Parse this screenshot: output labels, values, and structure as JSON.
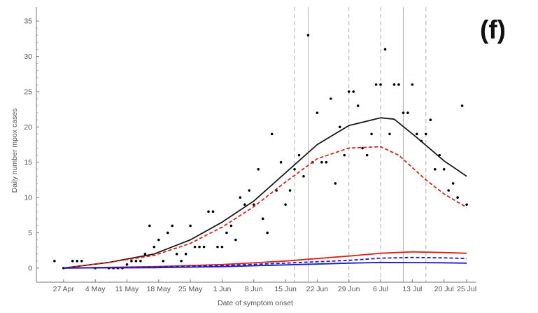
{
  "chart_data": {
    "type": "line",
    "panel_label": "(f)",
    "xlabel": "Date of symptom onset",
    "ylabel": "Daily number mpox cases",
    "x_ticks": [
      "27 Apr",
      "4 May",
      "11 May",
      "18 May",
      "25 May",
      "1 Jun",
      "8 Jun",
      "15 Jun",
      "22 Jun",
      "29 Jun",
      "6 Jul",
      "13 Jul",
      "20 Jul",
      "25 Jul"
    ],
    "x_tick_days": [
      0,
      7,
      14,
      21,
      28,
      35,
      42,
      49,
      56,
      63,
      70,
      77,
      84,
      89
    ],
    "y_ticks": [
      0,
      5,
      10,
      15,
      20,
      25,
      30,
      35
    ],
    "xlim": [
      -6,
      91
    ],
    "ylim": [
      -2,
      37
    ],
    "colors": {
      "black": "#1a1a1a",
      "red": "#e0201b",
      "blue": "#1c1ccc",
      "points": "#000000",
      "guides": "#b0b0b0"
    },
    "vlines_dashed": [
      51,
      63,
      70,
      80
    ],
    "vlines_solid": [
      54,
      75
    ],
    "series": [
      {
        "style": "solid",
        "color": "black",
        "x": [
          0,
          10,
          20,
          28,
          35,
          42,
          49,
          56,
          63,
          70,
          73,
          78,
          84,
          89
        ],
        "y": [
          0,
          0.8,
          2,
          4,
          6.5,
          9.5,
          13.5,
          17.5,
          20.2,
          21.3,
          21.1,
          18.5,
          15.2,
          13
        ]
      },
      {
        "style": "dashed",
        "color": "red",
        "x": [
          0,
          10,
          20,
          28,
          35,
          42,
          49,
          56,
          63,
          70,
          74,
          80,
          84,
          89
        ],
        "y": [
          0,
          0.8,
          1.8,
          3.5,
          5.8,
          8.7,
          12.2,
          15.5,
          17,
          17.2,
          16,
          12.5,
          10.5,
          8.6
        ]
      },
      {
        "style": "solid",
        "color": "red",
        "x": [
          0,
          20,
          35,
          49,
          63,
          70,
          77,
          84,
          89
        ],
        "y": [
          0,
          0.2,
          0.5,
          1,
          1.7,
          2.1,
          2.3,
          2.2,
          2.1
        ]
      },
      {
        "style": "dashed",
        "color": "blue",
        "x": [
          0,
          20,
          35,
          49,
          63,
          70,
          77,
          84,
          89
        ],
        "y": [
          0,
          0.15,
          0.35,
          0.7,
          1.1,
          1.4,
          1.5,
          1.45,
          1.35
        ]
      },
      {
        "style": "solid",
        "color": "blue",
        "x": [
          0,
          20,
          35,
          49,
          63,
          70,
          77,
          84,
          89
        ],
        "y": [
          0,
          0.05,
          0.2,
          0.45,
          0.7,
          0.8,
          0.78,
          0.75,
          0.7
        ]
      }
    ],
    "points": {
      "x": [
        -2,
        0,
        2,
        3,
        4,
        7,
        10,
        11,
        12,
        13,
        14,
        15,
        16,
        17,
        18,
        19,
        20,
        21,
        22,
        23,
        24,
        25,
        26,
        27,
        28,
        29,
        30,
        31,
        32,
        33,
        34,
        35,
        36,
        37,
        38,
        39,
        40,
        41,
        42,
        43,
        44,
        45,
        46,
        47,
        48,
        49,
        50,
        51,
        52,
        53,
        54,
        55,
        56,
        57,
        58,
        59,
        60,
        61,
        62,
        63,
        64,
        65,
        66,
        67,
        68,
        69,
        70,
        71,
        72,
        73,
        74,
        75,
        76,
        77,
        78,
        79,
        80,
        81,
        82,
        83,
        84,
        85,
        86,
        87,
        88,
        89
      ],
      "y": [
        1,
        0,
        1,
        1,
        1,
        0,
        0,
        0,
        0,
        0,
        0.5,
        1,
        1,
        1,
        2,
        6,
        3,
        4,
        1,
        5,
        6,
        2,
        1,
        2,
        6,
        3,
        3,
        3,
        8,
        8,
        3,
        3,
        5,
        6,
        4,
        10,
        9,
        11,
        9,
        14,
        7,
        5,
        19,
        11,
        15,
        9,
        11,
        14,
        16,
        13,
        33,
        15,
        22,
        15,
        15,
        24,
        12,
        20,
        16,
        25,
        25,
        23,
        17,
        16,
        19,
        26,
        26,
        31,
        19,
        26,
        26,
        22,
        22,
        26,
        19,
        18,
        19,
        21,
        14,
        16,
        14,
        11,
        12,
        10,
        23,
        9
      ]
    }
  }
}
